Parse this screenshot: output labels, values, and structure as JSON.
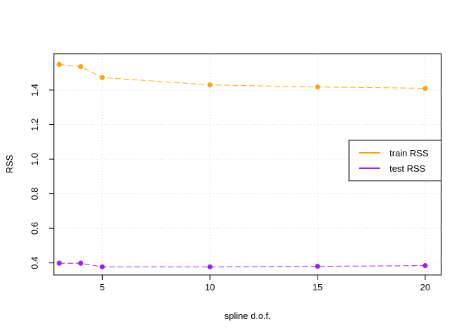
{
  "chart_data": {
    "type": "line",
    "title": "",
    "xlabel": "spline d.o.f.",
    "ylabel": "RSS",
    "xlim": [
      2.75,
      20.75
    ],
    "ylim": [
      0.33,
      1.61
    ],
    "xticks": [
      5,
      10,
      15,
      20
    ],
    "yticks": [
      0.4,
      0.6,
      0.8,
      1.0,
      1.2,
      1.4
    ],
    "xtick_labels": [
      "5",
      "10",
      "15",
      "20"
    ],
    "ytick_labels": [
      "0.4",
      "0.6",
      "0.8",
      "1.0",
      "1.2",
      "1.4"
    ],
    "grid": true,
    "legend_position": "right",
    "x": [
      3,
      4,
      5,
      10,
      15,
      20
    ],
    "series": [
      {
        "name": "train RSS",
        "color": "#FFA500",
        "values": [
          1.548,
          1.535,
          1.472,
          1.43,
          1.418,
          1.41
        ]
      },
      {
        "name": "test RSS",
        "color": "#A020F0",
        "values": [
          0.398,
          0.398,
          0.377,
          0.377,
          0.38,
          0.384
        ]
      }
    ]
  }
}
